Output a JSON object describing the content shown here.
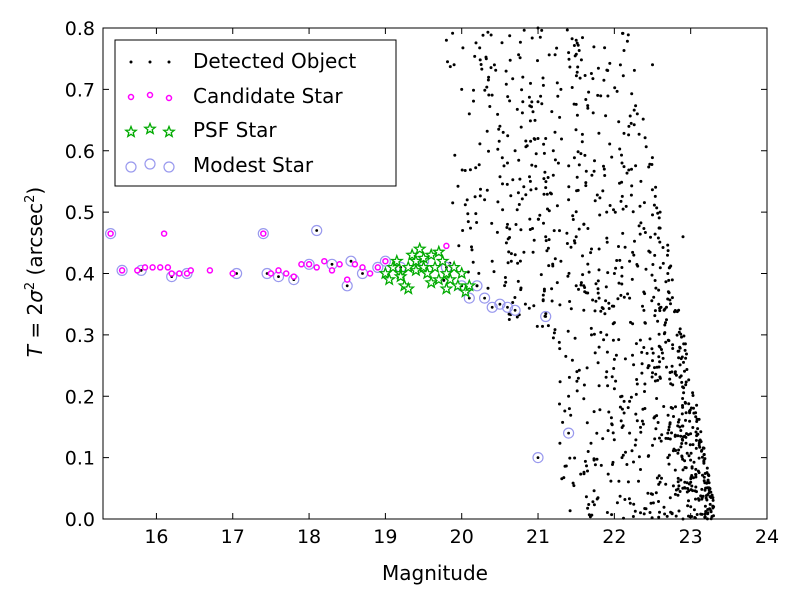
{
  "chart_data": {
    "type": "scatter",
    "xlabel": "Magnitude",
    "ylabel": "T = 2σ² (arcsec²)",
    "ylabel_parts": {
      "lhs": "T",
      "eq": " = 2",
      "sigma": "σ",
      "sup": "2",
      "unit": " (arcsec",
      "unit_sup": "2",
      "close": ")"
    },
    "xlim": [
      15.3,
      24
    ],
    "ylim": [
      0,
      0.8
    ],
    "xticks": [
      "16",
      "17",
      "18",
      "19",
      "20",
      "21",
      "22",
      "23",
      "24"
    ],
    "yticks": [
      "0.0",
      "0.1",
      "0.2",
      "0.3",
      "0.4",
      "0.5",
      "0.6",
      "0.7",
      "0.8"
    ],
    "xtick_values": [
      16,
      17,
      18,
      19,
      20,
      21,
      22,
      23,
      24
    ],
    "ytick_values": [
      0,
      0.1,
      0.2,
      0.3,
      0.4,
      0.5,
      0.6,
      0.7,
      0.8
    ],
    "grid": false,
    "legend_position": "top-left",
    "colors": {
      "detected": "#000000",
      "candidate": "#ff00ff",
      "psf": "#00aa00",
      "modest": "#9999ee"
    },
    "series": [
      {
        "name": "Detected Object",
        "marker": "dot",
        "count_note": "dense cloud, magnitudes ~20–23.4",
        "x": [
          20.2,
          20.4,
          20.6,
          20.9,
          21.1,
          21.3,
          21.5,
          21.7,
          21.9,
          22.1,
          22.3,
          22.5,
          22.7,
          22.9,
          20.3,
          20.7,
          21.0,
          21.4,
          21.8,
          22.2,
          22.6,
          23.0,
          23.3,
          19.8,
          20.0,
          20.5,
          20.8,
          21.2,
          21.6,
          22.0,
          22.4,
          22.8,
          19.9,
          20.1,
          20.6,
          21.1,
          21.5,
          21.9,
          22.3,
          22.7,
          21.0,
          21.4,
          21.8,
          22.2,
          22.6,
          20.8,
          21.2,
          21.6,
          22.0,
          22.4,
          21.3,
          21.7,
          22.1,
          22.5,
          22.9,
          21.1,
          21.5,
          21.9,
          22.3,
          22.7,
          21.6,
          22.0,
          22.4,
          22.8,
          21.8,
          22.2,
          22.6,
          23.0,
          22.1,
          22.5,
          22.9,
          21.0,
          21.4
        ],
        "y": [
          0.38,
          0.42,
          0.48,
          0.55,
          0.62,
          0.7,
          0.78,
          0.44,
          0.5,
          0.58,
          0.66,
          0.74,
          0.4,
          0.46,
          0.52,
          0.6,
          0.68,
          0.76,
          0.36,
          0.42,
          0.5,
          0.06,
          0.02,
          0.78,
          0.7,
          0.64,
          0.72,
          0.56,
          0.48,
          0.4,
          0.32,
          0.24,
          0.74,
          0.66,
          0.58,
          0.46,
          0.38,
          0.3,
          0.22,
          0.14,
          0.8,
          0.52,
          0.44,
          0.36,
          0.28,
          0.68,
          0.6,
          0.34,
          0.26,
          0.18,
          0.42,
          0.3,
          0.2,
          0.12,
          0.08,
          0.54,
          0.46,
          0.24,
          0.16,
          0.1,
          0.38,
          0.32,
          0.22,
          0.04,
          0.28,
          0.14,
          0.06,
          0.02,
          0.1,
          0.04,
          0.0,
          0.62,
          0.2
        ]
      },
      {
        "name": "Candidate Star",
        "marker": "small-circle",
        "x": [
          15.4,
          15.55,
          15.75,
          15.85,
          15.95,
          16.05,
          16.1,
          16.15,
          16.2,
          16.3,
          16.4,
          16.45,
          16.7,
          17.0,
          17.4,
          17.5,
          17.6,
          17.7,
          17.8,
          17.9,
          18.0,
          18.1,
          18.2,
          18.3,
          18.4,
          18.5,
          18.6,
          18.7,
          18.8,
          18.9,
          19.0,
          19.8,
          20.0
        ],
        "y": [
          0.465,
          0.405,
          0.405,
          0.41,
          0.41,
          0.41,
          0.465,
          0.41,
          0.4,
          0.4,
          0.4,
          0.405,
          0.405,
          0.4,
          0.465,
          0.4,
          0.405,
          0.4,
          0.395,
          0.415,
          0.415,
          0.41,
          0.42,
          0.405,
          0.415,
          0.39,
          0.415,
          0.41,
          0.4,
          0.41,
          0.42,
          0.445,
          0.4
        ]
      },
      {
        "name": "PSF Star",
        "marker": "star",
        "x": [
          19.0,
          19.05,
          19.1,
          19.15,
          19.2,
          19.25,
          19.3,
          19.35,
          19.4,
          19.45,
          19.5,
          19.55,
          19.6,
          19.65,
          19.7,
          19.75,
          19.8,
          19.85,
          19.9,
          19.95,
          20.0,
          20.05,
          20.1,
          19.2,
          19.3,
          19.4,
          19.5,
          19.6,
          19.7,
          19.8
        ],
        "y": [
          0.4,
          0.39,
          0.41,
          0.42,
          0.4,
          0.38,
          0.41,
          0.43,
          0.42,
          0.44,
          0.41,
          0.4,
          0.43,
          0.41,
          0.39,
          0.42,
          0.4,
          0.39,
          0.41,
          0.38,
          0.4,
          0.37,
          0.38,
          0.395,
          0.375,
          0.405,
          0.425,
          0.385,
          0.435,
          0.375
        ]
      },
      {
        "name": "Modest Star",
        "marker": "hollow-circle",
        "x": [
          15.4,
          15.55,
          15.8,
          16.2,
          16.4,
          17.05,
          17.4,
          17.45,
          17.6,
          17.8,
          18.0,
          18.1,
          18.3,
          18.5,
          18.55,
          18.7,
          18.9,
          19.0,
          19.2,
          19.5,
          19.8,
          20.0,
          20.1,
          20.2,
          20.3,
          20.4,
          20.5,
          20.6,
          20.7,
          21.0,
          21.1,
          21.4
        ],
        "y": [
          0.465,
          0.405,
          0.405,
          0.395,
          0.4,
          0.4,
          0.465,
          0.4,
          0.395,
          0.39,
          0.415,
          0.47,
          0.415,
          0.38,
          0.42,
          0.4,
          0.41,
          0.42,
          0.41,
          0.42,
          0.41,
          0.38,
          0.36,
          0.38,
          0.36,
          0.345,
          0.35,
          0.345,
          0.34,
          0.1,
          0.33,
          0.14
        ]
      }
    ]
  }
}
